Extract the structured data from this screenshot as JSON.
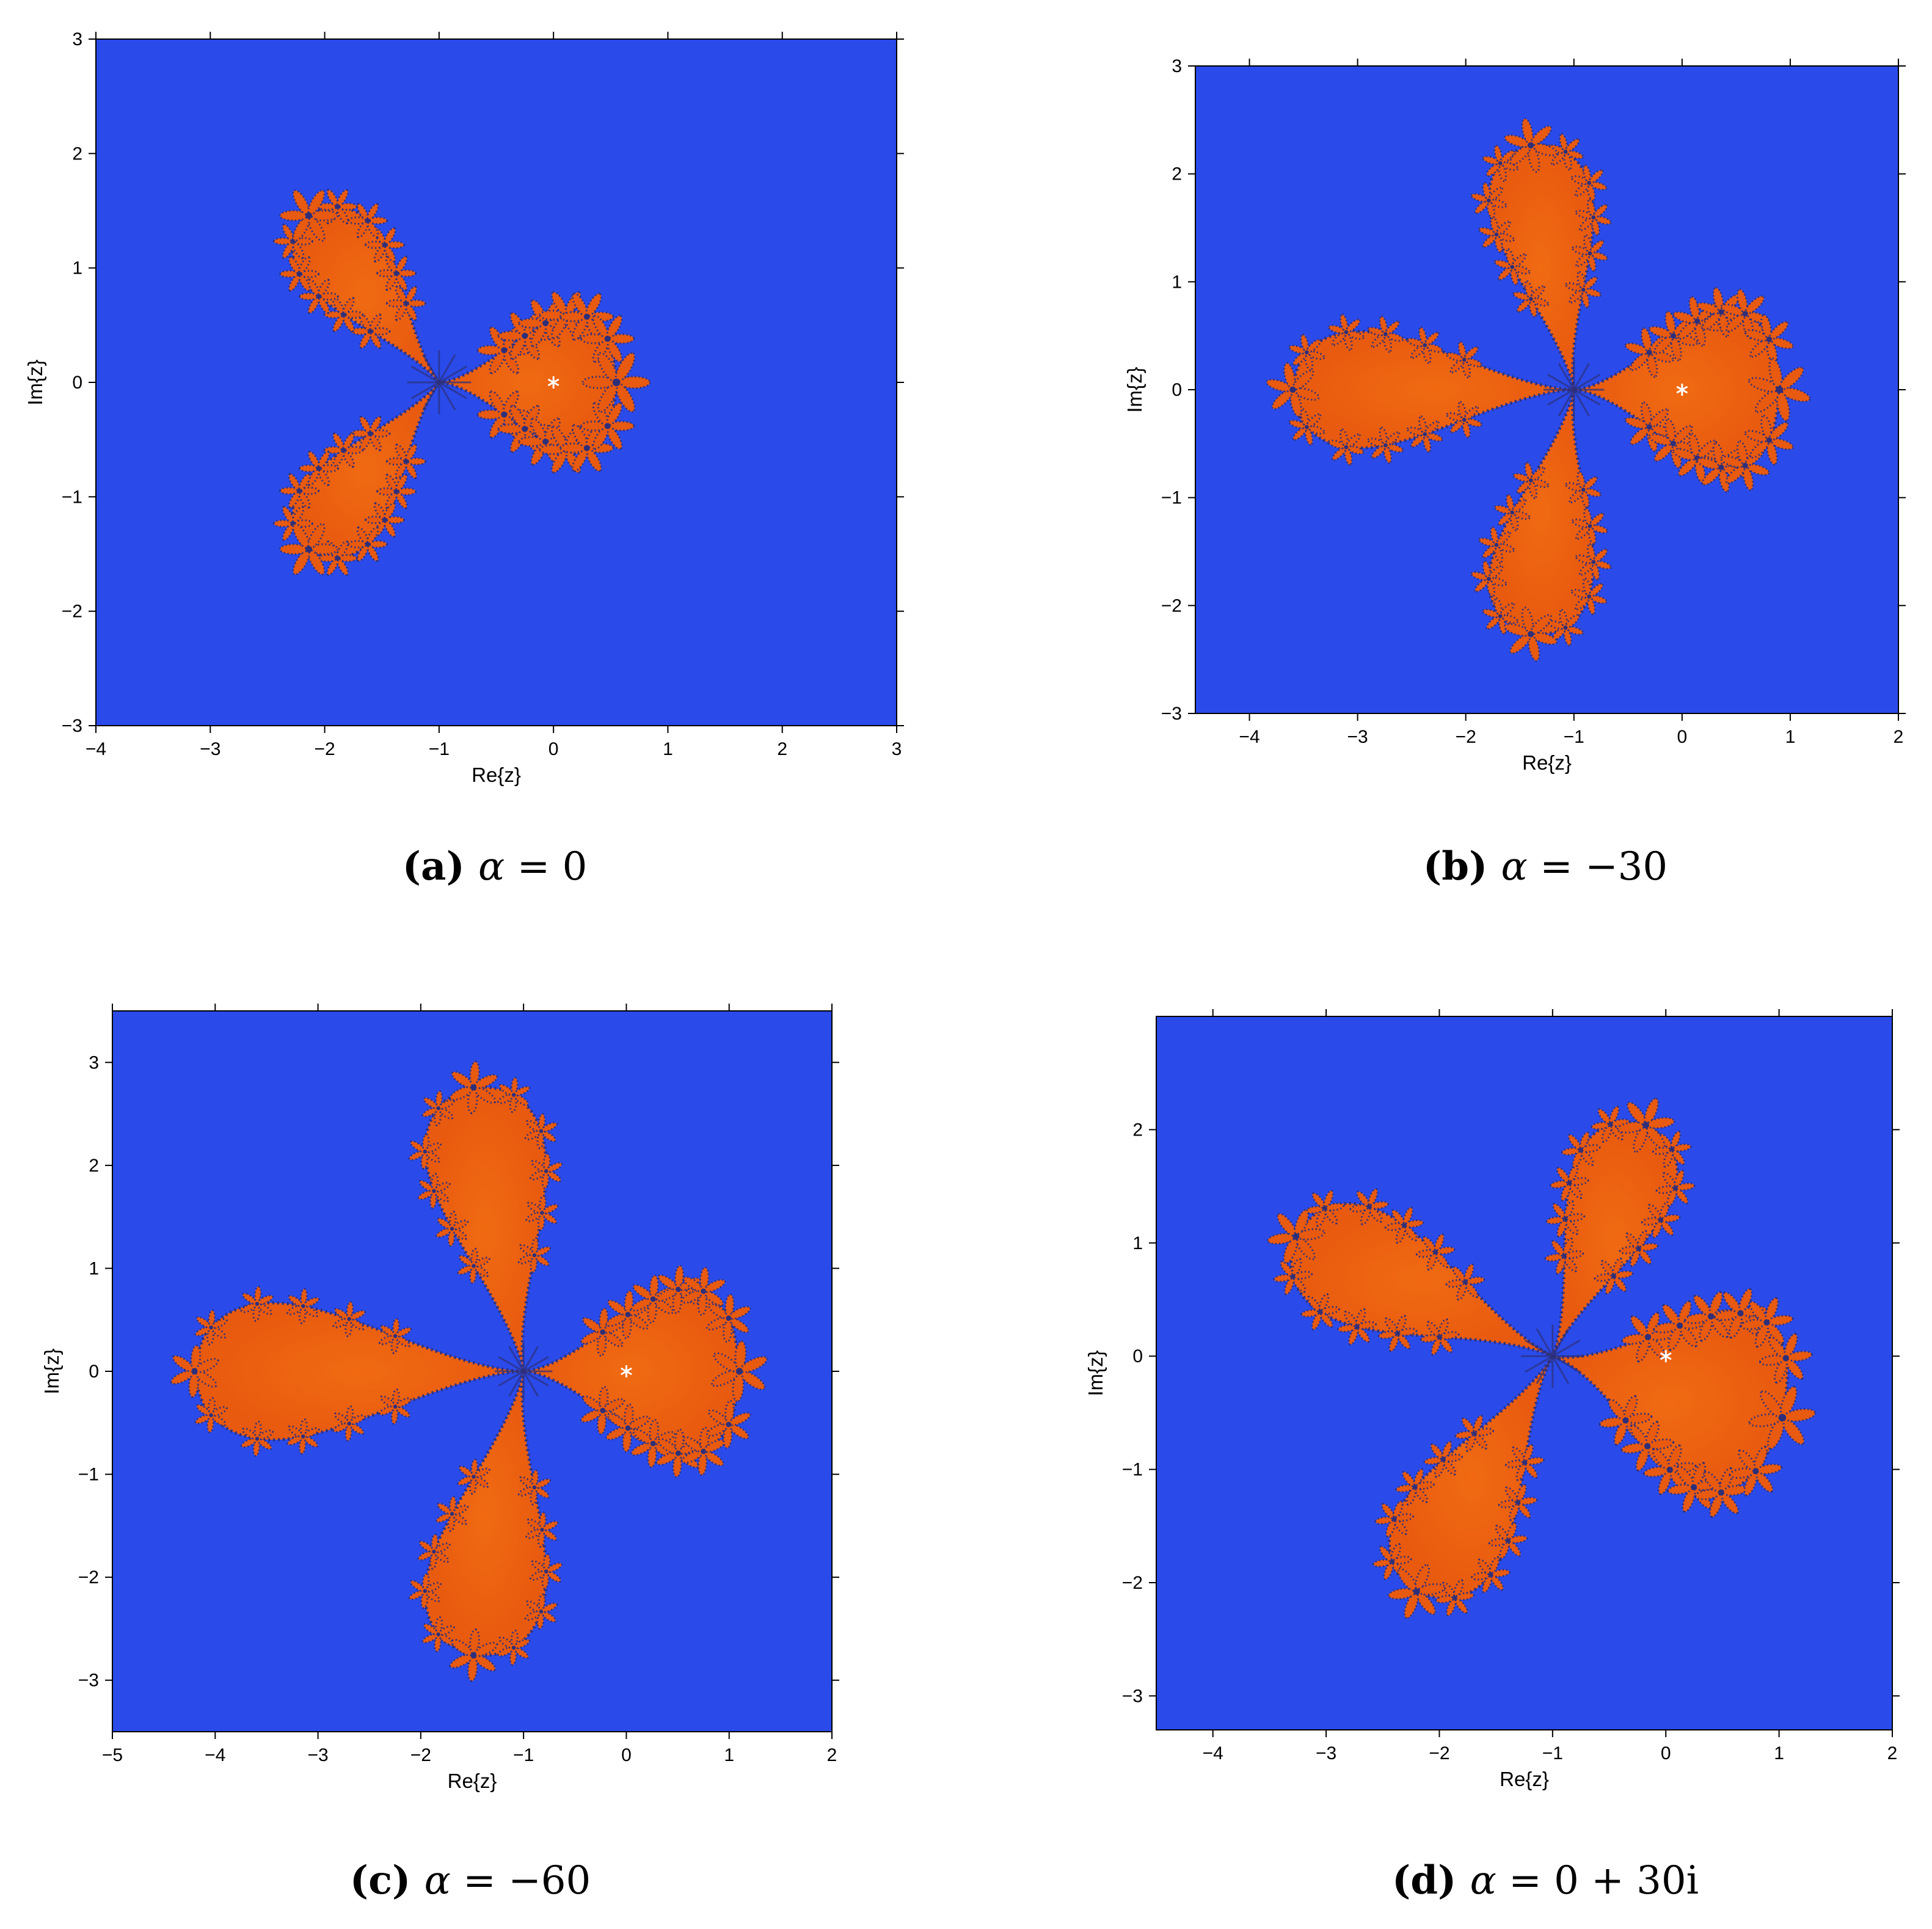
{
  "colors": {
    "background": "#2a4bea",
    "basin": "#e85a0f",
    "basin_core": "#f06a12",
    "boundary": "#2d2f7a",
    "fixed_point": "#ffffff"
  },
  "chart_data": [
    {
      "type": "heatmap",
      "title": "",
      "xlabel": "Re{z}",
      "ylabel": "Im{z}",
      "xlim": [
        -4,
        3
      ],
      "ylim": [
        -3,
        3
      ],
      "xticks": [
        -4,
        -3,
        -2,
        -1,
        0,
        1,
        2,
        3
      ],
      "yticks": [
        -3,
        -2,
        -1,
        0,
        1,
        2,
        3
      ],
      "xtick_labels": [
        "−4",
        "−3",
        "−2",
        "−1",
        "0",
        "1",
        "2",
        "3"
      ],
      "ytick_labels": [
        "−3",
        "−2",
        "−1",
        "0",
        "1",
        "2",
        "3"
      ],
      "grid": false,
      "fixed_point": [
        0,
        0
      ],
      "fixed_point_marker": "*",
      "hub": [
        -1,
        0
      ],
      "lobe_angles_deg": [
        0,
        128,
        232
      ],
      "lobe_lengths": [
        1.55,
        1.85,
        1.85
      ],
      "caption_tag": "(a)",
      "caption_symbol": "α",
      "caption_rest": " = 0"
    },
    {
      "type": "heatmap",
      "title": "",
      "xlabel": "Re{z}",
      "ylabel": "Im{z}",
      "xlim": [
        -4.5,
        2
      ],
      "ylim": [
        -3,
        3
      ],
      "xticks": [
        -4,
        -3,
        -2,
        -1,
        0,
        1,
        2
      ],
      "yticks": [
        -3,
        -2,
        -1,
        0,
        1,
        2,
        3
      ],
      "xtick_labels": [
        "−4",
        "−3",
        "−2",
        "−1",
        "0",
        "1",
        "2"
      ],
      "ytick_labels": [
        "−3",
        "−2",
        "−1",
        "0",
        "1",
        "2",
        "3"
      ],
      "grid": false,
      "fixed_point": [
        0,
        0
      ],
      "fixed_point_marker": "*",
      "hub": [
        -1,
        0
      ],
      "lobe_angles_deg": [
        0,
        100,
        180,
        260
      ],
      "lobe_lengths": [
        1.9,
        2.3,
        2.6,
        2.3
      ],
      "caption_tag": "(b)",
      "caption_symbol": "α",
      "caption_rest": " = −30"
    },
    {
      "type": "heatmap",
      "title": "",
      "xlabel": "Re{z}",
      "ylabel": "Im{z}",
      "xlim": [
        -5,
        2
      ],
      "ylim": [
        -3.5,
        3.5
      ],
      "xticks": [
        -5,
        -4,
        -3,
        -2,
        -1,
        0,
        1,
        2
      ],
      "yticks": [
        -3,
        -2,
        -1,
        0,
        1,
        2,
        3
      ],
      "xtick_labels": [
        "−5",
        "−4",
        "−3",
        "−2",
        "−1",
        "0",
        "1",
        "2"
      ],
      "ytick_labels": [
        "−3",
        "−2",
        "−1",
        "0",
        "1",
        "2",
        "3"
      ],
      "grid": false,
      "fixed_point": [
        0,
        0
      ],
      "fixed_point_marker": "*",
      "hub": [
        -1,
        0
      ],
      "lobe_angles_deg": [
        0,
        100,
        180,
        260
      ],
      "lobe_lengths": [
        2.1,
        2.8,
        3.2,
        2.8
      ],
      "caption_tag": "(c)",
      "caption_symbol": "α",
      "caption_rest": " = −60"
    },
    {
      "type": "heatmap",
      "title": "",
      "xlabel": "Re{z}",
      "ylabel": "Im{z}",
      "xlim": [
        -4.5,
        2
      ],
      "ylim": [
        -3.3,
        3
      ],
      "xticks": [
        -4,
        -3,
        -2,
        -1,
        0,
        1,
        2
      ],
      "yticks": [
        -3,
        -2,
        -1,
        0,
        1,
        2
      ],
      "xtick_labels": [
        "−4",
        "−3",
        "−2",
        "−1",
        "0",
        "1",
        "2"
      ],
      "ytick_labels": [
        "−3",
        "−2",
        "−1",
        "0",
        "1",
        "2"
      ],
      "grid": false,
      "fixed_point": [
        0,
        0
      ],
      "fixed_point_marker": "*",
      "hub": [
        -1,
        0
      ],
      "lobe_angles_deg": [
        -15,
        68,
        155,
        240
      ],
      "lobe_lengths": [
        2.1,
        2.2,
        2.5,
        2.4
      ],
      "caption_tag": "(d)",
      "caption_symbol": "α",
      "caption_rest": " = 0 + 30i"
    }
  ]
}
